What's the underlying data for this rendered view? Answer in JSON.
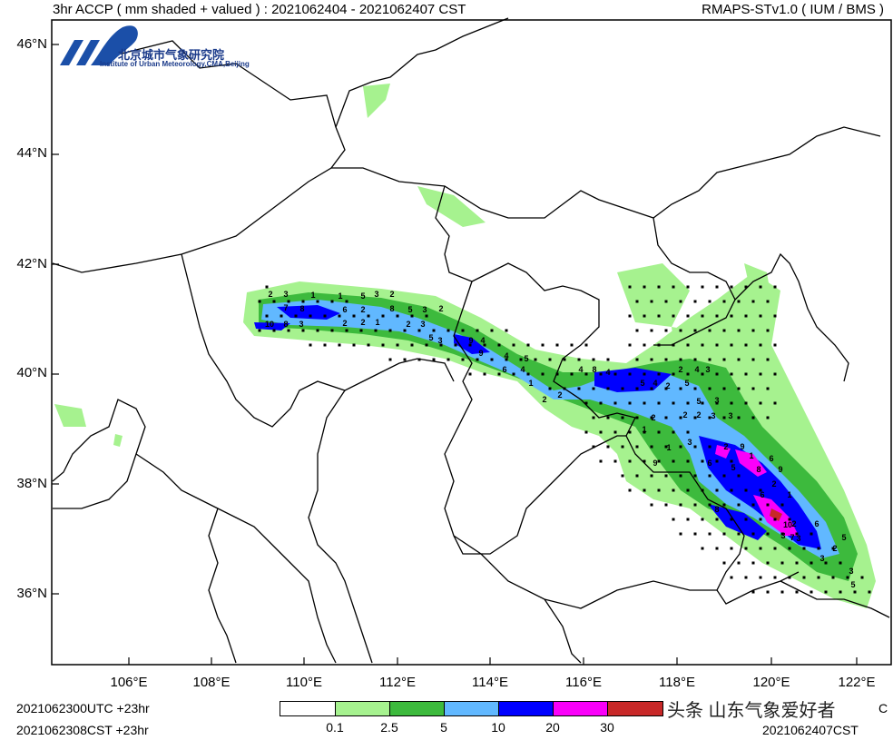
{
  "header": {
    "left_title": "3hr ACCP ( mm shaded + valued ) : 2021062404 - 2021062407 CST",
    "right_title": "RMAPS-STv1.0 ( IUM / BMS )"
  },
  "logo": {
    "abbr": "IUM",
    "name_cn": "北京城市气象研究院",
    "name_en": "Institute of Urban Meteorology,CMA,Beijing"
  },
  "axes": {
    "lat_labels": [
      "46°N",
      "44°N",
      "42°N",
      "40°N",
      "38°N",
      "36°N"
    ],
    "lon_labels": [
      "106°E",
      "108°E",
      "110°E",
      "112°E",
      "114°E",
      "116°E",
      "118°E",
      "120°E",
      "122°E"
    ]
  },
  "footer": {
    "init_utc": "2021062300UTC +23hr",
    "init_cst": "2021062308CST +23hr",
    "valid_utc_tail": "C",
    "valid_cst": "2021062407CST",
    "watermark": "头条 山东气象爱好者"
  },
  "colorbar": {
    "colors": [
      "#ffffff",
      "#a6f28f",
      "#3dba3d",
      "#61b8ff",
      "#0000ff",
      "#fa00fa",
      "#c82828"
    ],
    "labels": [
      "0.1",
      "2.5",
      "5",
      "10",
      "20",
      "30"
    ]
  },
  "map_values": [
    {
      "t": "2"
    },
    {
      "t": "3"
    },
    {
      "t": "1"
    },
    {
      "t": "1"
    },
    {
      "t": "5"
    },
    {
      "t": "3"
    },
    {
      "t": "2"
    },
    {
      "t": "7"
    },
    {
      "t": "8"
    },
    {
      "t": "6"
    },
    {
      "t": "2"
    },
    {
      "t": "8"
    },
    {
      "t": "5"
    },
    {
      "t": "3"
    },
    {
      "t": "10"
    },
    {
      "t": "8"
    },
    {
      "t": "3"
    },
    {
      "t": "2"
    },
    {
      "t": "2"
    },
    {
      "t": "1"
    },
    {
      "t": "2"
    },
    {
      "t": "3"
    },
    {
      "t": "5"
    },
    {
      "t": "3"
    },
    {
      "t": "2"
    },
    {
      "t": "9"
    },
    {
      "t": "4"
    },
    {
      "t": "9"
    },
    {
      "t": "4"
    },
    {
      "t": "6"
    },
    {
      "t": "4"
    },
    {
      "t": "5"
    },
    {
      "t": "1"
    },
    {
      "t": "2"
    },
    {
      "t": "2"
    },
    {
      "t": "4"
    },
    {
      "t": "8"
    },
    {
      "t": "4"
    },
    {
      "t": "5"
    },
    {
      "t": "4"
    },
    {
      "t": "2"
    },
    {
      "t": "2"
    },
    {
      "t": "5"
    },
    {
      "t": "4"
    },
    {
      "t": "3"
    },
    {
      "t": "3"
    },
    {
      "t": "5"
    },
    {
      "t": "2"
    },
    {
      "t": "2"
    },
    {
      "t": "3"
    },
    {
      "t": "3"
    },
    {
      "t": "2"
    },
    {
      "t": "1"
    },
    {
      "t": "1"
    },
    {
      "t": "2"
    },
    {
      "t": "9"
    },
    {
      "t": "5"
    },
    {
      "t": "6"
    },
    {
      "t": "3"
    },
    {
      "t": "6"
    },
    {
      "t": "9"
    },
    {
      "t": "1"
    },
    {
      "t": "8"
    },
    {
      "t": "9"
    },
    {
      "t": "2"
    },
    {
      "t": "6"
    },
    {
      "t": "1"
    },
    {
      "t": "8"
    },
    {
      "t": "2"
    },
    {
      "t": "10"
    },
    {
      "t": "3"
    },
    {
      "t": "7"
    },
    {
      "t": "6"
    },
    {
      "t": "3"
    },
    {
      "t": "5"
    },
    {
      "t": "2"
    },
    {
      "t": "3"
    },
    {
      "t": "3"
    },
    {
      "t": "5"
    },
    {
      "t": "2"
    }
  ]
}
